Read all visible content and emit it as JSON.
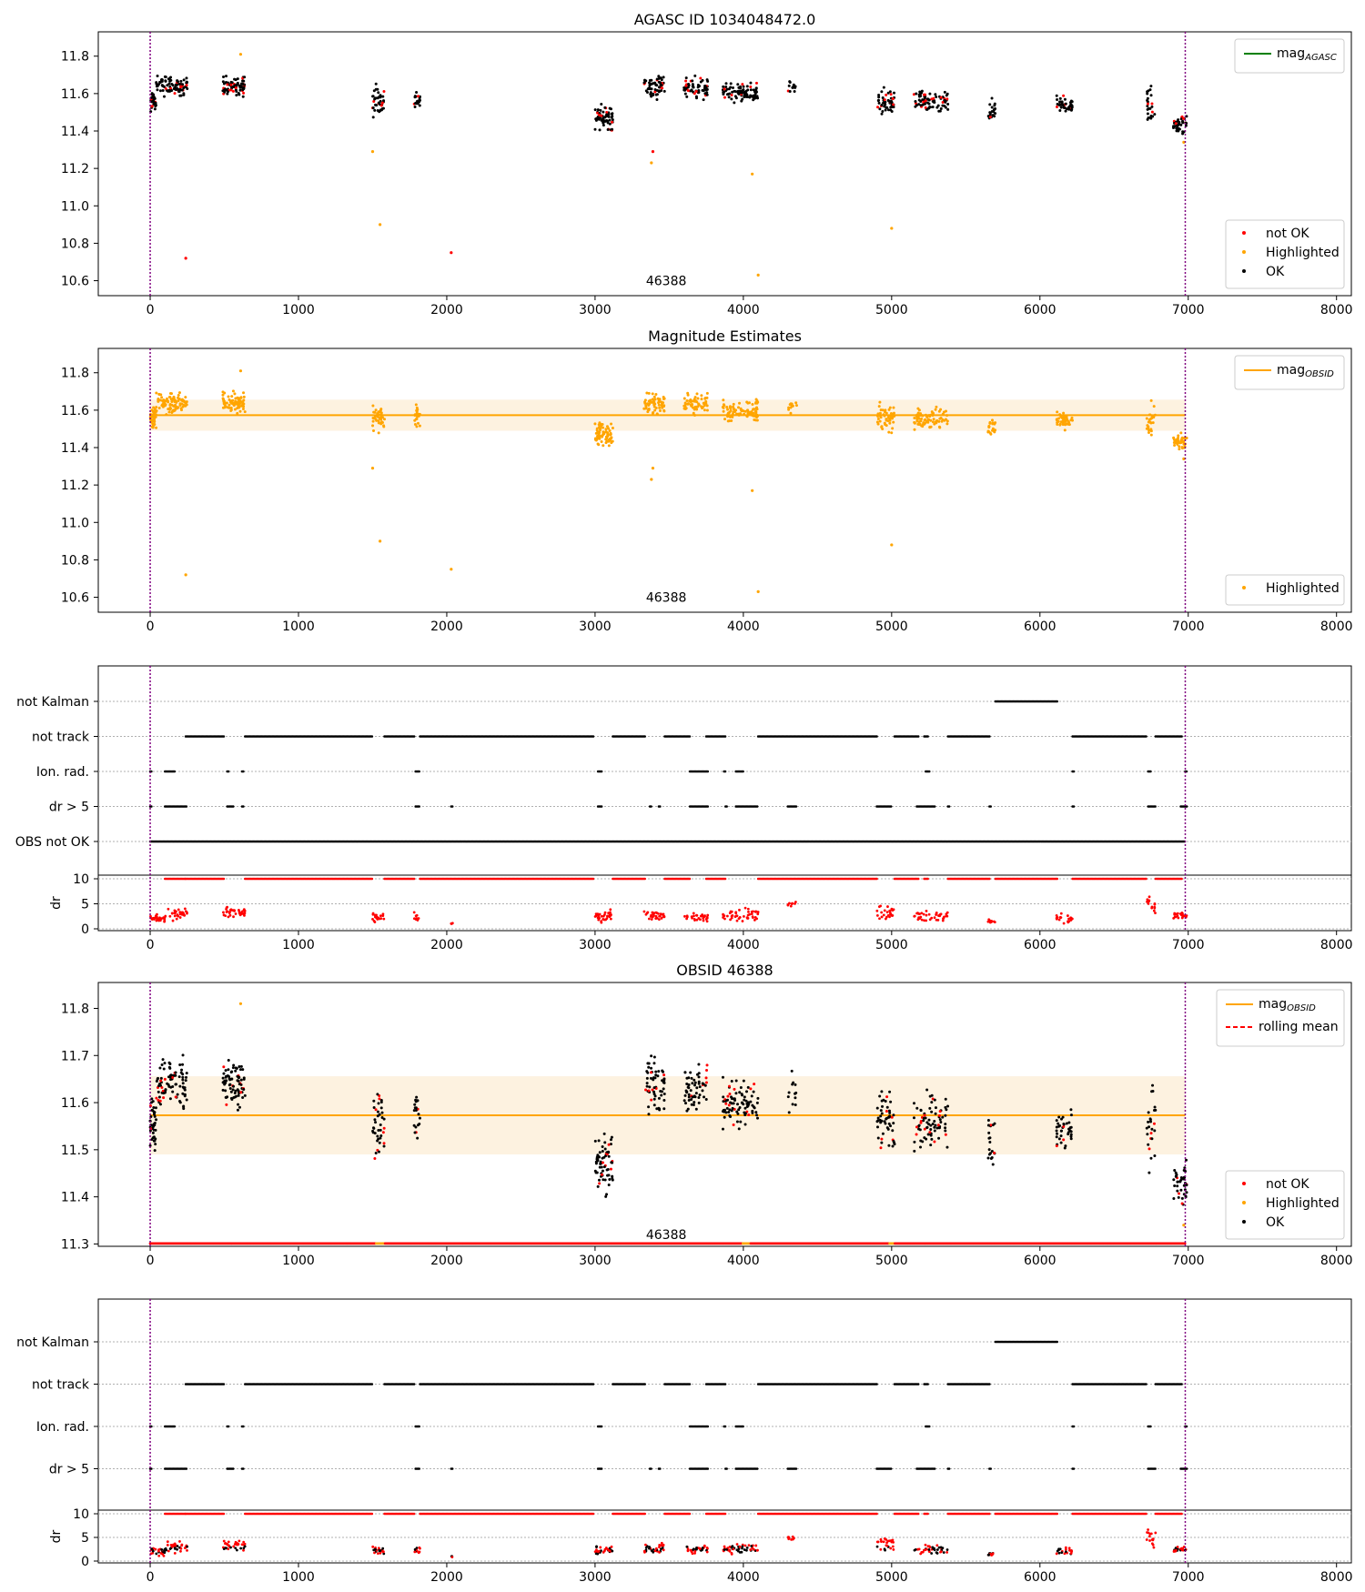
{
  "figure": {
    "colors": {
      "not_ok": "#ff0000",
      "highlighted": "#ffa500",
      "ok": "#000000",
      "agasc": "#008000",
      "vline": "#800080",
      "band": "#fdf2e0"
    },
    "obsid_label": "46388"
  },
  "chart_data": [
    {
      "type": "scatter",
      "title": "AGASC ID 1034048472.0",
      "xlim": [
        -350,
        8100
      ],
      "ylim": [
        10.52,
        11.93
      ],
      "xticks": [
        0,
        1000,
        2000,
        3000,
        4000,
        5000,
        6000,
        7000,
        8000
      ],
      "yticks": [
        10.6,
        10.8,
        11.0,
        11.2,
        11.4,
        11.6,
        11.8
      ],
      "vlines": [
        0,
        6980
      ],
      "annotation": {
        "text": "46388",
        "x": 3480,
        "y": 10.6
      },
      "legend_upper": [
        {
          "label": "mag",
          "sub": "AGASC",
          "kind": "line",
          "color": "green"
        }
      ],
      "legend_lower": [
        {
          "label": "not OK",
          "color": "red"
        },
        {
          "label": "Highlighted",
          "color": "orange"
        },
        {
          "label": "OK",
          "color": "black"
        }
      ],
      "clusters": [
        {
          "x": [
            0,
            40
          ],
          "y": 11.56,
          "s": 0.05,
          "n": 40
        },
        {
          "x": [
            40,
            250
          ],
          "y": 11.64,
          "s": 0.05,
          "n": 90
        },
        {
          "x": [
            490,
            640
          ],
          "y": 11.64,
          "s": 0.05,
          "n": 80
        },
        {
          "x": [
            1500,
            1580
          ],
          "y": 11.56,
          "s": 0.07,
          "n": 40
        },
        {
          "x": [
            1780,
            1820
          ],
          "y": 11.57,
          "s": 0.05,
          "n": 20
        },
        {
          "x": [
            3000,
            3120
          ],
          "y": 11.47,
          "s": 0.06,
          "n": 70
        },
        {
          "x": [
            3330,
            3470
          ],
          "y": 11.64,
          "s": 0.06,
          "n": 60
        },
        {
          "x": [
            3600,
            3760
          ],
          "y": 11.63,
          "s": 0.05,
          "n": 60
        },
        {
          "x": [
            3860,
            4100
          ],
          "y": 11.6,
          "s": 0.05,
          "n": 90
        },
        {
          "x": [
            4300,
            4360
          ],
          "y": 11.62,
          "s": 0.04,
          "n": 12
        },
        {
          "x": [
            4900,
            5020
          ],
          "y": 11.56,
          "s": 0.07,
          "n": 50
        },
        {
          "x": [
            5150,
            5380
          ],
          "y": 11.56,
          "s": 0.05,
          "n": 80
        },
        {
          "x": [
            5650,
            5700
          ],
          "y": 11.51,
          "s": 0.05,
          "n": 20
        },
        {
          "x": [
            6110,
            6220
          ],
          "y": 11.54,
          "s": 0.04,
          "n": 40
        },
        {
          "x": [
            6720,
            6780
          ],
          "y": 11.55,
          "s": 0.09,
          "n": 25
        },
        {
          "x": [
            6900,
            6990
          ],
          "y": 11.43,
          "s": 0.04,
          "n": 40
        }
      ],
      "outliers": [
        {
          "x": 240,
          "y": 10.72,
          "c": "red"
        },
        {
          "x": 1500,
          "y": 11.29,
          "c": "orange"
        },
        {
          "x": 1550,
          "y": 10.9,
          "c": "orange"
        },
        {
          "x": 2030,
          "y": 10.75,
          "c": "red"
        },
        {
          "x": 3380,
          "y": 11.23,
          "c": "orange"
        },
        {
          "x": 3390,
          "y": 11.29,
          "c": "red"
        },
        {
          "x": 4060,
          "y": 11.17,
          "c": "orange"
        },
        {
          "x": 4100,
          "y": 10.63,
          "c": "orange"
        },
        {
          "x": 5000,
          "y": 10.88,
          "c": "orange"
        },
        {
          "x": 610,
          "y": 11.81,
          "c": "orange"
        },
        {
          "x": 6970,
          "y": 11.34,
          "c": "orange"
        }
      ]
    },
    {
      "type": "scatter",
      "title": "Magnitude Estimates",
      "xlim": [
        -350,
        8100
      ],
      "ylim": [
        10.52,
        11.93
      ],
      "xticks": [
        0,
        1000,
        2000,
        3000,
        4000,
        5000,
        6000,
        7000,
        8000
      ],
      "yticks": [
        10.6,
        10.8,
        11.0,
        11.2,
        11.4,
        11.6,
        11.8
      ],
      "vlines": [
        0,
        6980
      ],
      "hline": {
        "y": 11.573,
        "band": [
          11.49,
          11.656
        ],
        "x": [
          0,
          6980
        ]
      },
      "annotation": {
        "text": "46388",
        "x": 3480,
        "y": 10.6
      },
      "legend_upper": [
        {
          "label": "mag",
          "sub": "OBSID",
          "kind": "line",
          "color": "orange"
        }
      ],
      "legend_lower": [
        {
          "label": "Highlighted",
          "color": "orange"
        }
      ]
    },
    {
      "type": "scatter",
      "title": "",
      "xlim": [
        -350,
        8100
      ],
      "xticks": [
        0,
        1000,
        2000,
        3000,
        4000,
        5000,
        6000,
        7000,
        8000
      ],
      "vlines": [
        0,
        6980
      ],
      "flags": [
        "not Kalman",
        "not track",
        "Ion. rad.",
        "dr > 5",
        "OBS not OK"
      ],
      "dr_ylabel": "dr",
      "dr_ytick_labels": [
        "0",
        "5",
        "10"
      ]
    },
    {
      "type": "scatter",
      "title": "OBSID 46388",
      "xlim": [
        -350,
        8100
      ],
      "ylim": [
        11.295,
        11.855
      ],
      "xticks": [
        0,
        1000,
        2000,
        3000,
        4000,
        5000,
        6000,
        7000,
        8000
      ],
      "yticks": [
        11.3,
        11.4,
        11.5,
        11.6,
        11.7,
        11.8
      ],
      "vlines": [
        0,
        6980
      ],
      "hline": {
        "y": 11.573,
        "band": [
          11.49,
          11.656
        ],
        "x": [
          0,
          6980
        ]
      },
      "annotation": {
        "text": "46388",
        "x": 3480,
        "y": 11.32
      },
      "legend_upper": [
        {
          "label": "mag",
          "sub": "OBSID",
          "kind": "line",
          "color": "orange"
        },
        {
          "label": "rolling mean",
          "kind": "dash",
          "color": "red"
        }
      ],
      "legend_lower": [
        {
          "label": "not OK",
          "color": "red"
        },
        {
          "label": "Highlighted",
          "color": "orange"
        },
        {
          "label": "OK",
          "color": "black"
        }
      ]
    },
    {
      "type": "scatter",
      "title": "",
      "xlim": [
        -350,
        8100
      ],
      "xticks": [
        0,
        1000,
        2000,
        3000,
        4000,
        5000,
        6000,
        7000,
        8000
      ],
      "vlines": [
        0,
        6980
      ],
      "flags": [
        "not Kalman",
        "not track",
        "Ion. rad.",
        "dr > 5"
      ],
      "dr_ylabel": "dr",
      "dr_ytick_labels": [
        "0",
        "5",
        "10"
      ]
    }
  ],
  "flag_segments": {
    "not_kalman": [
      [
        5700,
        6120
      ]
    ],
    "not_track": [
      [
        240,
        500
      ],
      [
        640,
        1500
      ],
      [
        1580,
        1780
      ],
      [
        1820,
        2990
      ],
      [
        3120,
        3340
      ],
      [
        3470,
        3640
      ],
      [
        3750,
        3880
      ],
      [
        4100,
        4900
      ],
      [
        5020,
        5180
      ],
      [
        5220,
        5250
      ],
      [
        5380,
        5660
      ],
      [
        6220,
        6720
      ],
      [
        6780,
        6960
      ]
    ],
    "ion_rad": [
      [
        0,
        10
      ],
      [
        100,
        170
      ],
      [
        520,
        530
      ],
      [
        620,
        630
      ],
      [
        1790,
        1820
      ],
      [
        3020,
        3050
      ],
      [
        3640,
        3760
      ],
      [
        3870,
        3880
      ],
      [
        3950,
        4000
      ],
      [
        5230,
        5260
      ],
      [
        6220,
        6230
      ],
      [
        6730,
        6750
      ],
      [
        6980,
        6990
      ]
    ],
    "dr5": [
      [
        0,
        10
      ],
      [
        100,
        250
      ],
      [
        520,
        560
      ],
      [
        620,
        630
      ],
      [
        1790,
        1820
      ],
      [
        2030,
        2040
      ],
      [
        3020,
        3050
      ],
      [
        3370,
        3380
      ],
      [
        3430,
        3440
      ],
      [
        3640,
        3760
      ],
      [
        3880,
        3890
      ],
      [
        3950,
        4100
      ],
      [
        4300,
        4360
      ],
      [
        4900,
        5000
      ],
      [
        5170,
        5290
      ],
      [
        5380,
        5390
      ],
      [
        5660,
        5670
      ],
      [
        6220,
        6230
      ],
      [
        6730,
        6780
      ],
      [
        6950,
        6990
      ]
    ],
    "obs_not_ok": [
      [
        0,
        6980
      ]
    ]
  },
  "dr_clusters": [
    {
      "x": [
        0,
        100
      ],
      "y": 2,
      "s": 0.8,
      "n": 25
    },
    {
      "x": [
        100,
        250
      ],
      "y": 3,
      "s": 1.0,
      "n": 35
    },
    {
      "x": [
        490,
        640
      ],
      "y": 3.2,
      "s": 1.0,
      "n": 35
    },
    {
      "x": [
        1500,
        1580
      ],
      "y": 2.2,
      "s": 0.8,
      "n": 20
    },
    {
      "x": [
        1780,
        1820
      ],
      "y": 2.5,
      "s": 1.0,
      "n": 10
    },
    {
      "x": [
        2030,
        2040
      ],
      "y": 1,
      "s": 0.3,
      "n": 3
    },
    {
      "x": [
        3000,
        3120
      ],
      "y": 2.5,
      "s": 1.0,
      "n": 30
    },
    {
      "x": [
        3330,
        3470
      ],
      "y": 2.6,
      "s": 1.0,
      "n": 30
    },
    {
      "x": [
        3600,
        3760
      ],
      "y": 2.4,
      "s": 1.0,
      "n": 30
    },
    {
      "x": [
        3860,
        4100
      ],
      "y": 2.8,
      "s": 1.1,
      "n": 45
    },
    {
      "x": [
        4300,
        4360
      ],
      "y": 5,
      "s": 0.5,
      "n": 8
    },
    {
      "x": [
        4900,
        5020
      ],
      "y": 3.5,
      "s": 1.5,
      "n": 25
    },
    {
      "x": [
        5150,
        5380
      ],
      "y": 2.5,
      "s": 1.0,
      "n": 40
    },
    {
      "x": [
        5650,
        5700
      ],
      "y": 1.5,
      "s": 0.4,
      "n": 10
    },
    {
      "x": [
        6110,
        6220
      ],
      "y": 2,
      "s": 0.8,
      "n": 20
    },
    {
      "x": [
        6720,
        6780
      ],
      "y": 5,
      "s": 2.0,
      "n": 15
    },
    {
      "x": [
        6900,
        6990
      ],
      "y": 2.5,
      "s": 0.8,
      "n": 20
    }
  ]
}
